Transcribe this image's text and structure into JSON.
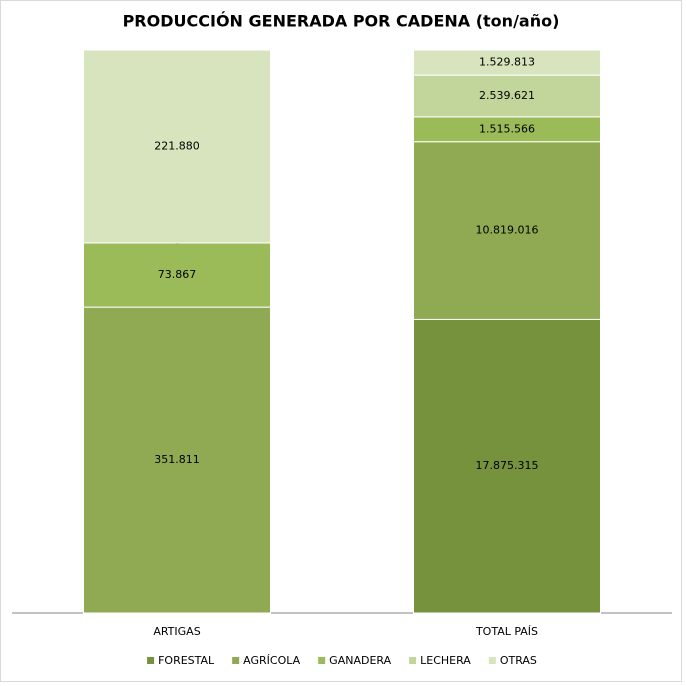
{
  "chart_data": {
    "type": "bar",
    "stacking": "percent",
    "title": "PRODUCCIÓN GENERADA POR CADENA (ton/año)",
    "categories": [
      "ARTIGAS",
      "TOTAL PAÍS"
    ],
    "series": [
      {
        "name": "FORESTAL",
        "color": "#76923c",
        "values": [
          0,
          17875315
        ],
        "value_labels": [
          "-",
          "17.875.315"
        ]
      },
      {
        "name": "AGRÍCOLA",
        "color": "#8faa52",
        "values": [
          351811,
          10819016
        ],
        "value_labels": [
          "351.811",
          "10.819.016"
        ]
      },
      {
        "name": "GANADERA",
        "color": "#9bbb59",
        "values": [
          73867,
          1515566
        ],
        "value_labels": [
          "73.867",
          "1.515.566"
        ]
      },
      {
        "name": "LECHERA",
        "color": "#c2d69b",
        "values": [
          0,
          2539621
        ],
        "value_labels": [
          "-",
          "2.539.621"
        ]
      },
      {
        "name": "OTRAS",
        "color": "#d7e4bd",
        "values": [
          221880,
          1529813
        ],
        "value_labels": [
          "221.880",
          "1.529.813"
        ]
      }
    ],
    "legend": "bottom"
  }
}
